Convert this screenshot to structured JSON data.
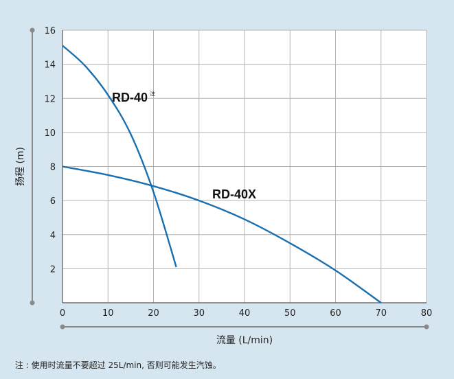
{
  "chart_data": {
    "type": "line",
    "xlabel": "流量 (L/min)",
    "ylabel": "扬程 (m)",
    "xlim": [
      0,
      80
    ],
    "ylim": [
      0,
      16
    ],
    "xticks": [
      0,
      10,
      20,
      30,
      40,
      50,
      60,
      70,
      80
    ],
    "yticks": [
      2,
      4,
      6,
      8,
      10,
      12,
      14,
      16
    ],
    "grid": true,
    "series": [
      {
        "name": "RD-40",
        "note": "注",
        "color": "#1a6fb0",
        "x": [
          0,
          5,
          10,
          15,
          20,
          25
        ],
        "y": [
          15.1,
          13.9,
          12.2,
          9.9,
          6.5,
          2.1
        ]
      },
      {
        "name": "RD-40X",
        "color": "#1a6fb0",
        "x": [
          0,
          10,
          20,
          30,
          40,
          50,
          60,
          70
        ],
        "y": [
          8.0,
          7.5,
          6.85,
          6.0,
          4.9,
          3.5,
          1.9,
          0.0
        ]
      }
    ]
  },
  "footnote": "注 : 使用时流量不要超过 25L/min, 否则可能发生汽蚀。"
}
